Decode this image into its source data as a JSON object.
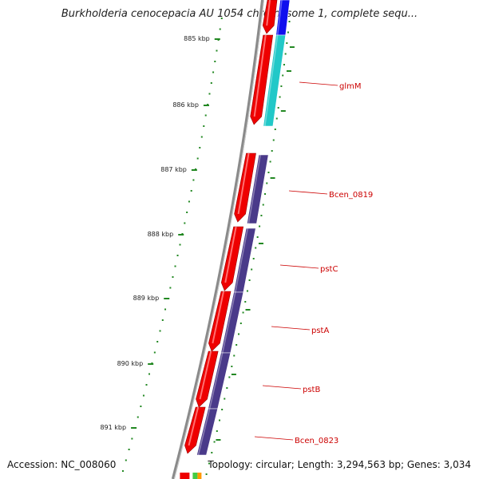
{
  "title": "Burkholderia cenocepacia AU 1054 chromosome 1, complete sequ...",
  "accession": "Accession: NC_008060",
  "topology": "Topology: circular; Length: 3,294,563 bp; Genes: 3,034",
  "colors": {
    "backbone": "#8a8a8a",
    "forward_cds": "#ee0000",
    "reverse_cds": "#4a3a8a",
    "glmM_partner": "#22c8c8",
    "top_partner": "#1010ee",
    "tick": "#228822",
    "label": "#cc0000"
  },
  "kbp_ticks": [
    {
      "label": "885 kbp"
    },
    {
      "label": "886 kbp"
    },
    {
      "label": "887 kbp"
    },
    {
      "label": "888 kbp"
    },
    {
      "label": "889 kbp"
    },
    {
      "label": "890 kbp"
    },
    {
      "label": "891 kbp"
    }
  ],
  "genes": [
    {
      "name": "glmM"
    },
    {
      "name": "Bcen_0819"
    },
    {
      "name": "pstC"
    },
    {
      "name": "pstA"
    },
    {
      "name": "pstB"
    },
    {
      "name": "Bcen_0823"
    }
  ]
}
